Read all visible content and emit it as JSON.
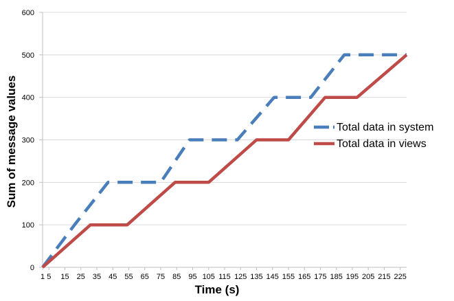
{
  "chart_data": {
    "type": "line",
    "xlabel": "Time (s)",
    "ylabel": "Sum of message values",
    "ylim": [
      0,
      600
    ],
    "yticks": [
      0,
      100,
      200,
      300,
      400,
      500,
      600
    ],
    "xlim": [
      1,
      229
    ],
    "xtick_labels": [
      "1",
      "5",
      "15",
      "25",
      "35",
      "45",
      "55",
      "65",
      "75",
      "85",
      "95",
      "105",
      "115",
      "125",
      "135",
      "145",
      "155",
      "165",
      "175",
      "185",
      "195",
      "205",
      "215",
      "225"
    ],
    "grid": "horizontal",
    "legend_position": "right",
    "series": [
      {
        "name": "Total data in system",
        "color": "#4a7ebb",
        "line_style": "dashed",
        "x": [
          1,
          21,
          42,
          75,
          93,
          123,
          146,
          169,
          190,
          229
        ],
        "y": [
          0,
          100,
          200,
          200,
          300,
          300,
          400,
          400,
          500,
          500
        ]
      },
      {
        "name": "Total data in views",
        "color": "#be4b48",
        "line_style": "solid",
        "x": [
          1,
          31,
          54,
          84,
          105,
          135,
          155,
          178,
          198,
          229
        ],
        "y": [
          0,
          100,
          100,
          200,
          200,
          300,
          300,
          400,
          400,
          500
        ]
      }
    ]
  }
}
